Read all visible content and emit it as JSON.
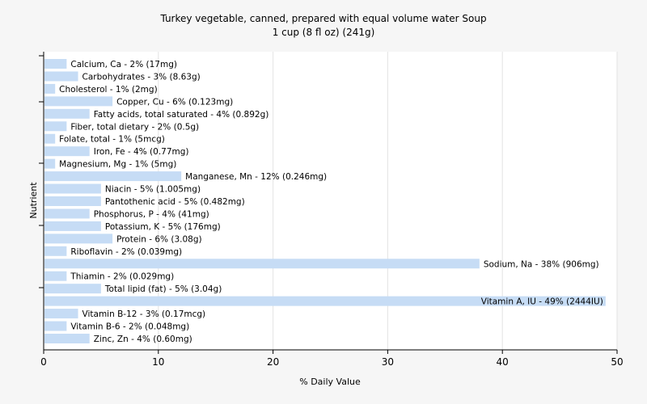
{
  "title_line1": "Turkey vegetable, canned, prepared with equal volume water Soup",
  "title_line2": "1 cup (8 fl oz) (241g)",
  "chart_data": {
    "type": "bar",
    "orientation": "horizontal",
    "xlabel": "% Daily Value",
    "ylabel": "Nutrient",
    "xlim": [
      0,
      50
    ],
    "xticks": [
      0,
      10,
      20,
      30,
      40,
      50
    ],
    "grid": true,
    "bar_color": "#c6dcf5",
    "categories": [
      "Calcium, Ca",
      "Carbohydrates",
      "Cholesterol",
      "Copper, Cu",
      "Fatty acids, total saturated",
      "Fiber, total dietary",
      "Folate, total",
      "Iron, Fe",
      "Magnesium, Mg",
      "Manganese, Mn",
      "Niacin",
      "Pantothenic acid",
      "Phosphorus, P",
      "Potassium, K",
      "Protein",
      "Riboflavin",
      "Sodium, Na",
      "Thiamin",
      "Total lipid (fat)",
      "Vitamin A, IU",
      "Vitamin B-12",
      "Vitamin B-6",
      "Zinc, Zn"
    ],
    "values": [
      2,
      3,
      1,
      6,
      4,
      2,
      1,
      4,
      1,
      12,
      5,
      5,
      4,
      5,
      6,
      2,
      38,
      2,
      5,
      49,
      3,
      2,
      4
    ],
    "labels": [
      "Calcium, Ca - 2% (17mg)",
      "Carbohydrates - 3% (8.63g)",
      "Cholesterol - 1% (2mg)",
      "Copper, Cu - 6% (0.123mg)",
      "Fatty acids, total saturated - 4% (0.892g)",
      "Fiber, total dietary - 2% (0.5g)",
      "Folate, total - 1% (5mcg)",
      "Iron, Fe - 4% (0.77mg)",
      "Magnesium, Mg - 1% (5mg)",
      "Manganese, Mn - 12% (0.246mg)",
      "Niacin - 5% (1.005mg)",
      "Pantothenic acid - 5% (0.482mg)",
      "Phosphorus, P - 4% (41mg)",
      "Potassium, K - 5% (176mg)",
      "Protein - 6% (3.08g)",
      "Riboflavin - 2% (0.039mg)",
      "Sodium, Na - 38% (906mg)",
      "Thiamin - 2% (0.029mg)",
      "Total lipid (fat) - 5% (3.04g)",
      "Vitamin A, IU - 49% (2444IU)",
      "Vitamin B-12 - 3% (0.17mcg)",
      "Vitamin B-6 - 2% (0.048mg)",
      "Zinc, Zn - 4% (0.60mg)"
    ]
  }
}
